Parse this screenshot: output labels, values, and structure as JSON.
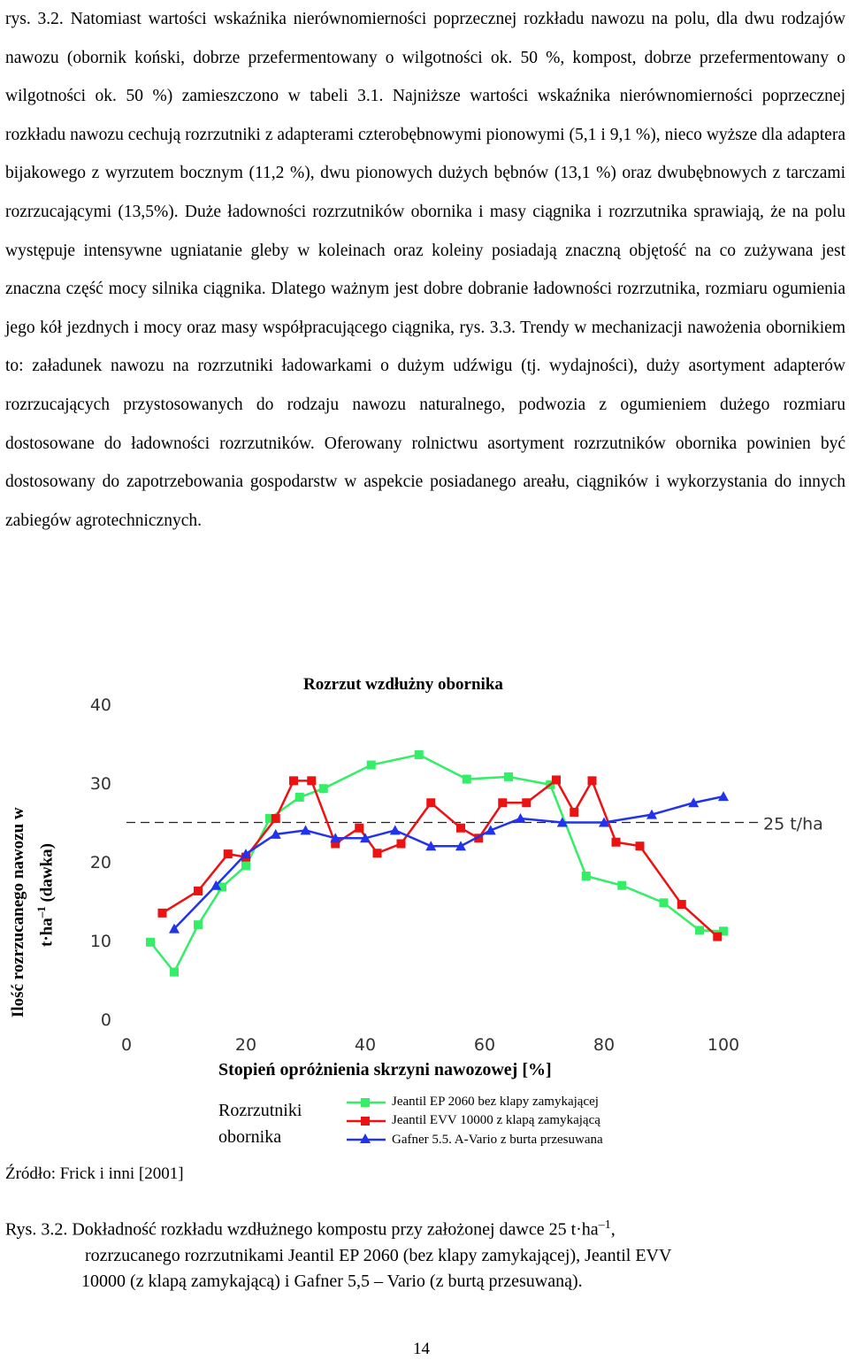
{
  "paragraph": "rys. 3.2. Natomiast wartości wskaźnika nierównomierności poprzecznej rozkładu nawozu na polu, dla dwu rodzajów nawozu (obornik koński, dobrze przefermentowany o wilgotności ok. 50 %, kompost, dobrze przefermentowany o wilgotności ok. 50 %) zamieszczono w tabeli 3.1. Najniższe wartości wskaźnika nierównomierności poprzecznej rozkładu nawozu cechują rozrzutniki z adapterami czterobębnowymi pionowymi (5,1 i 9,1 %), nieco wyższe dla adaptera bijakowego z wyrzutem bocznym (11,2 %), dwu pionowych dużych bębnów (13,1 %) oraz dwubębnowych z tarczami rozrzucającymi (13,5%). Duże ładowności rozrzutników obornika i masy ciągnika i rozrzutnika sprawiają, że na polu występuje intensywne ugniatanie gleby w koleinach oraz koleiny posiadają znaczną objętość na co zużywana jest znaczna część mocy silnika ciągnika. Dlatego ważnym jest dobre dobranie ładowności rozrzutnika, rozmiaru ogumienia jego kół jezdnych i mocy oraz masy współpracującego ciągnika, rys. 3.3. Trendy w mechanizacji nawożenia obornikiem to: załadunek nawozu na rozrzutniki ładowarkami o dużym udźwigu (tj. wydajności), duży asortyment adapterów rozrzucających przystosowanych do rodzaju nawozu naturalnego, podwozia z ogumieniem dużego rozmiaru dostosowane do ładowności rozrzutników. Oferowany rolnictwu asortyment rozrzutników obornika powinien być dostosowany do zapotrzebowania gospodarstw w aspekcie posiadanego areału, ciągników i wykorzystania do innych zabiegów agrotechnicznych.",
  "chart_data": {
    "type": "line",
    "title": "Rozrzut wzdłużny obornika",
    "ylabel_line1": "Ilość rozrzucanego nawozu w",
    "ylabel_line2": "t·ha",
    "ylabel_sup": "–1",
    "ylabel_line2_rest": "(dawka)",
    "xlabel": "Stopień opróżnienia skrzyni nawozowej [%]",
    "xlim": [
      0,
      100
    ],
    "ylim": [
      0,
      40
    ],
    "xticks": [
      "0",
      "20",
      "40",
      "60",
      "80",
      "100"
    ],
    "yticks": [
      "0",
      "10",
      "20",
      "30",
      "40"
    ],
    "reference_line": {
      "y": 25,
      "label": "25 t/ha"
    },
    "legend_title": "Rozrzutniki obornika",
    "series": [
      {
        "name": "Jeantil EP 2060 bez klapy zamykającej",
        "color": "#33ee66",
        "marker": "square",
        "x": [
          4,
          8,
          12,
          16,
          20,
          24,
          29,
          33,
          41,
          49,
          57,
          64,
          71,
          77,
          83,
          90,
          96,
          100
        ],
        "y": [
          9.8,
          6.0,
          12.0,
          16.8,
          19.5,
          25.5,
          28.2,
          29.3,
          32.3,
          33.6,
          30.5,
          30.8,
          29.8,
          18.2,
          17.0,
          14.8,
          11.3,
          11.2
        ]
      },
      {
        "name": "Jeantil EVV 10000 z klapą zamykającą",
        "color": "#ee1111",
        "marker": "square",
        "x": [
          6,
          12,
          17,
          20,
          25,
          28,
          31,
          35,
          39,
          42,
          46,
          51,
          56,
          59,
          63,
          67,
          72,
          75,
          78,
          82,
          86,
          93,
          99
        ],
        "y": [
          13.5,
          16.3,
          21.0,
          20.6,
          25.5,
          30.3,
          30.3,
          22.3,
          24.3,
          21.1,
          22.3,
          27.5,
          24.3,
          23.0,
          27.5,
          27.5,
          30.4,
          26.3,
          30.3,
          22.5,
          22.0,
          14.6,
          10.5
        ]
      },
      {
        "name": "Gafner 5.5. A-Vario z burta przesuwana",
        "color": "#2233ee",
        "marker": "triangle",
        "x": [
          8,
          15,
          20,
          25,
          30,
          35,
          40,
          45,
          51,
          56,
          61,
          66,
          73,
          80,
          88,
          95,
          100
        ],
        "y": [
          11.5,
          17.0,
          21.0,
          23.5,
          24.0,
          23.0,
          23.0,
          24.0,
          22.0,
          22.0,
          24.0,
          25.5,
          25.0,
          25.0,
          26.0,
          27.5,
          28.3
        ]
      }
    ]
  },
  "source": "Źródło: Frick i inni [2001]",
  "caption": {
    "line1": "Rys. 3.2. Dokładność rozkładu wzdłużnego kompostu przy założonej dawce 25 t·ha",
    "line1_sup": "–1",
    "line1_end": ",",
    "line2": "rozrzucanego rozrzutnikami Jeantil EP 2060 (bez klapy zamykającej), Jeantil EVV",
    "line3": "10000 (z klapą zamykającą) i Gafner 5,5 – Vario (z burtą przesuwaną)."
  },
  "page_number": "14"
}
